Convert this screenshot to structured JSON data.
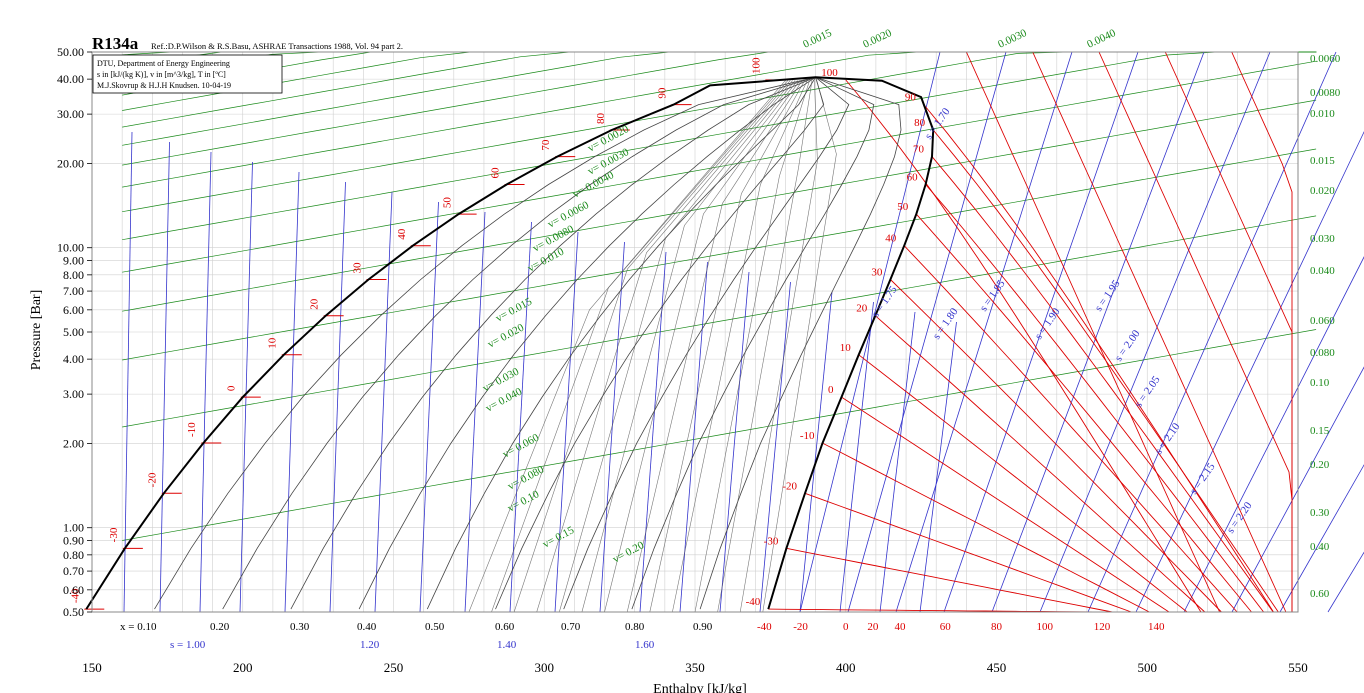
{
  "chart_data": {
    "type": "line",
    "chart_kind": "log p-h diagram",
    "title": "R134a",
    "reference": "Ref.:D.P.Wilson & R.S.Basu, ASHRAE Transactions 1988, Vol. 94 part 2.",
    "info_box": [
      "DTU, Department of Energy Engineering",
      "s in [kJ/(kg K)], v in [m^3/kg], T in [ºC]",
      "M.J.Skovrup & H.J.H Knudsen. 10-04-19"
    ],
    "xlabel": "Enthalpy [kJ/kg]",
    "ylabel": "Pressure [Bar]",
    "xlim": [
      150,
      550
    ],
    "ylim": [
      0.5,
      50
    ],
    "y_scale": "log",
    "grid": true,
    "colors": {
      "saturation": "#000000",
      "quality": "#000000",
      "isotherm": "#dd0000",
      "isochore": "#1a8a1a",
      "isentrope": "#3333cc",
      "grid": "#d0d0d0"
    },
    "x_ticks": [
      "150",
      "200",
      "250",
      "300",
      "350",
      "400",
      "450",
      "500",
      "550"
    ],
    "y_ticks": [
      "0.50",
      "0.60",
      "0.70",
      "0.80",
      "0.90",
      "1.00",
      "2.00",
      "3.00",
      "4.00",
      "5.00",
      "6.00",
      "7.00",
      "8.00",
      "9.00",
      "10.00",
      "20.00",
      "30.00",
      "40.00",
      "50.00"
    ],
    "quality_labels": [
      "x = 0.10",
      "0.20",
      "0.30",
      "0.40",
      "0.50",
      "0.60",
      "0.70",
      "0.80",
      "0.90"
    ],
    "entropy_bottom_labels": [
      "s = 1.00",
      "1.20",
      "1.40",
      "1.60"
    ],
    "temperature_bottom_labels": [
      "-40",
      "-20",
      "0",
      "20",
      "40",
      "60",
      "80",
      "100",
      "120",
      "140"
    ],
    "saturated_liquid_temp_labels": [
      "-40",
      "-30",
      "-20",
      "-10",
      "0",
      "10",
      "20",
      "30",
      "40",
      "50",
      "60",
      "70",
      "80",
      "90",
      "100"
    ],
    "saturated_vapor_temp_labels": [
      "-40",
      "-30",
      "-20",
      "-10",
      "0",
      "10",
      "20",
      "30",
      "40",
      "50",
      "60",
      "70",
      "80",
      "90",
      "100"
    ],
    "isochore_labels_inside": [
      "v= 0.0020",
      "v= 0.0030",
      "v= 0.0040",
      "v= 0.0060",
      "v= 0.0080",
      "v= 0.010",
      "v= 0.015",
      "v= 0.020",
      "v= 0.030",
      "v= 0.040",
      "v= 0.060",
      "v= 0.080",
      "v= 0.10",
      "v= 0.15",
      "v= 0.20"
    ],
    "isochore_labels_top": [
      "0.0015",
      "0.0020",
      "0.0030",
      "0.0040"
    ],
    "isochore_labels_right": [
      "0.0060",
      "0.0080",
      "0.010",
      "0.015",
      "0.020",
      "0.030",
      "0.040",
      "0.060",
      "0.080",
      "0.10",
      "0.15",
      "0.20",
      "0.30",
      "0.40",
      "0.60"
    ],
    "isentrope_labels": [
      "s = 1.70",
      "s = 1.75",
      "s = 1.80",
      "s = 1.85",
      "s = 1.90",
      "s = 1.95",
      "s = 2.00",
      "s = 2.05",
      "s = 2.10",
      "s = 2.15",
      "s = 2.20"
    ],
    "saturation_liquid": {
      "T": [
        -40,
        -30,
        -20,
        -10,
        0,
        10,
        20,
        30,
        40,
        50,
        60,
        70,
        80,
        90,
        100
      ],
      "p": [
        0.512,
        0.844,
        1.327,
        2.006,
        2.928,
        4.146,
        5.717,
        7.702,
        10.166,
        13.179,
        16.818,
        21.16,
        26.33,
        32.44,
        39.72
      ],
      "h": [
        148.1,
        160.9,
        173.8,
        186.9,
        200.0,
        213.6,
        227.5,
        241.7,
        256.4,
        271.6,
        287.5,
        304.3,
        322.4,
        342.9,
        374.0
      ]
    },
    "saturation_vapor": {
      "T": [
        -40,
        -30,
        -20,
        -10,
        0,
        10,
        20,
        30,
        40,
        50,
        60,
        70,
        80,
        90,
        100
      ],
      "p": [
        0.512,
        0.844,
        1.327,
        2.006,
        2.928,
        4.146,
        5.717,
        7.702,
        10.166,
        13.179,
        16.818,
        21.16,
        26.33,
        32.44,
        39.72
      ],
      "h": [
        374.3,
        380.3,
        386.5,
        392.3,
        398.6,
        404.3,
        409.8,
        414.8,
        419.4,
        423.4,
        426.5,
        428.6,
        429.0,
        425.9,
        400.0
      ]
    },
    "critical_point": {
      "h": 390,
      "p": 40.6
    }
  }
}
